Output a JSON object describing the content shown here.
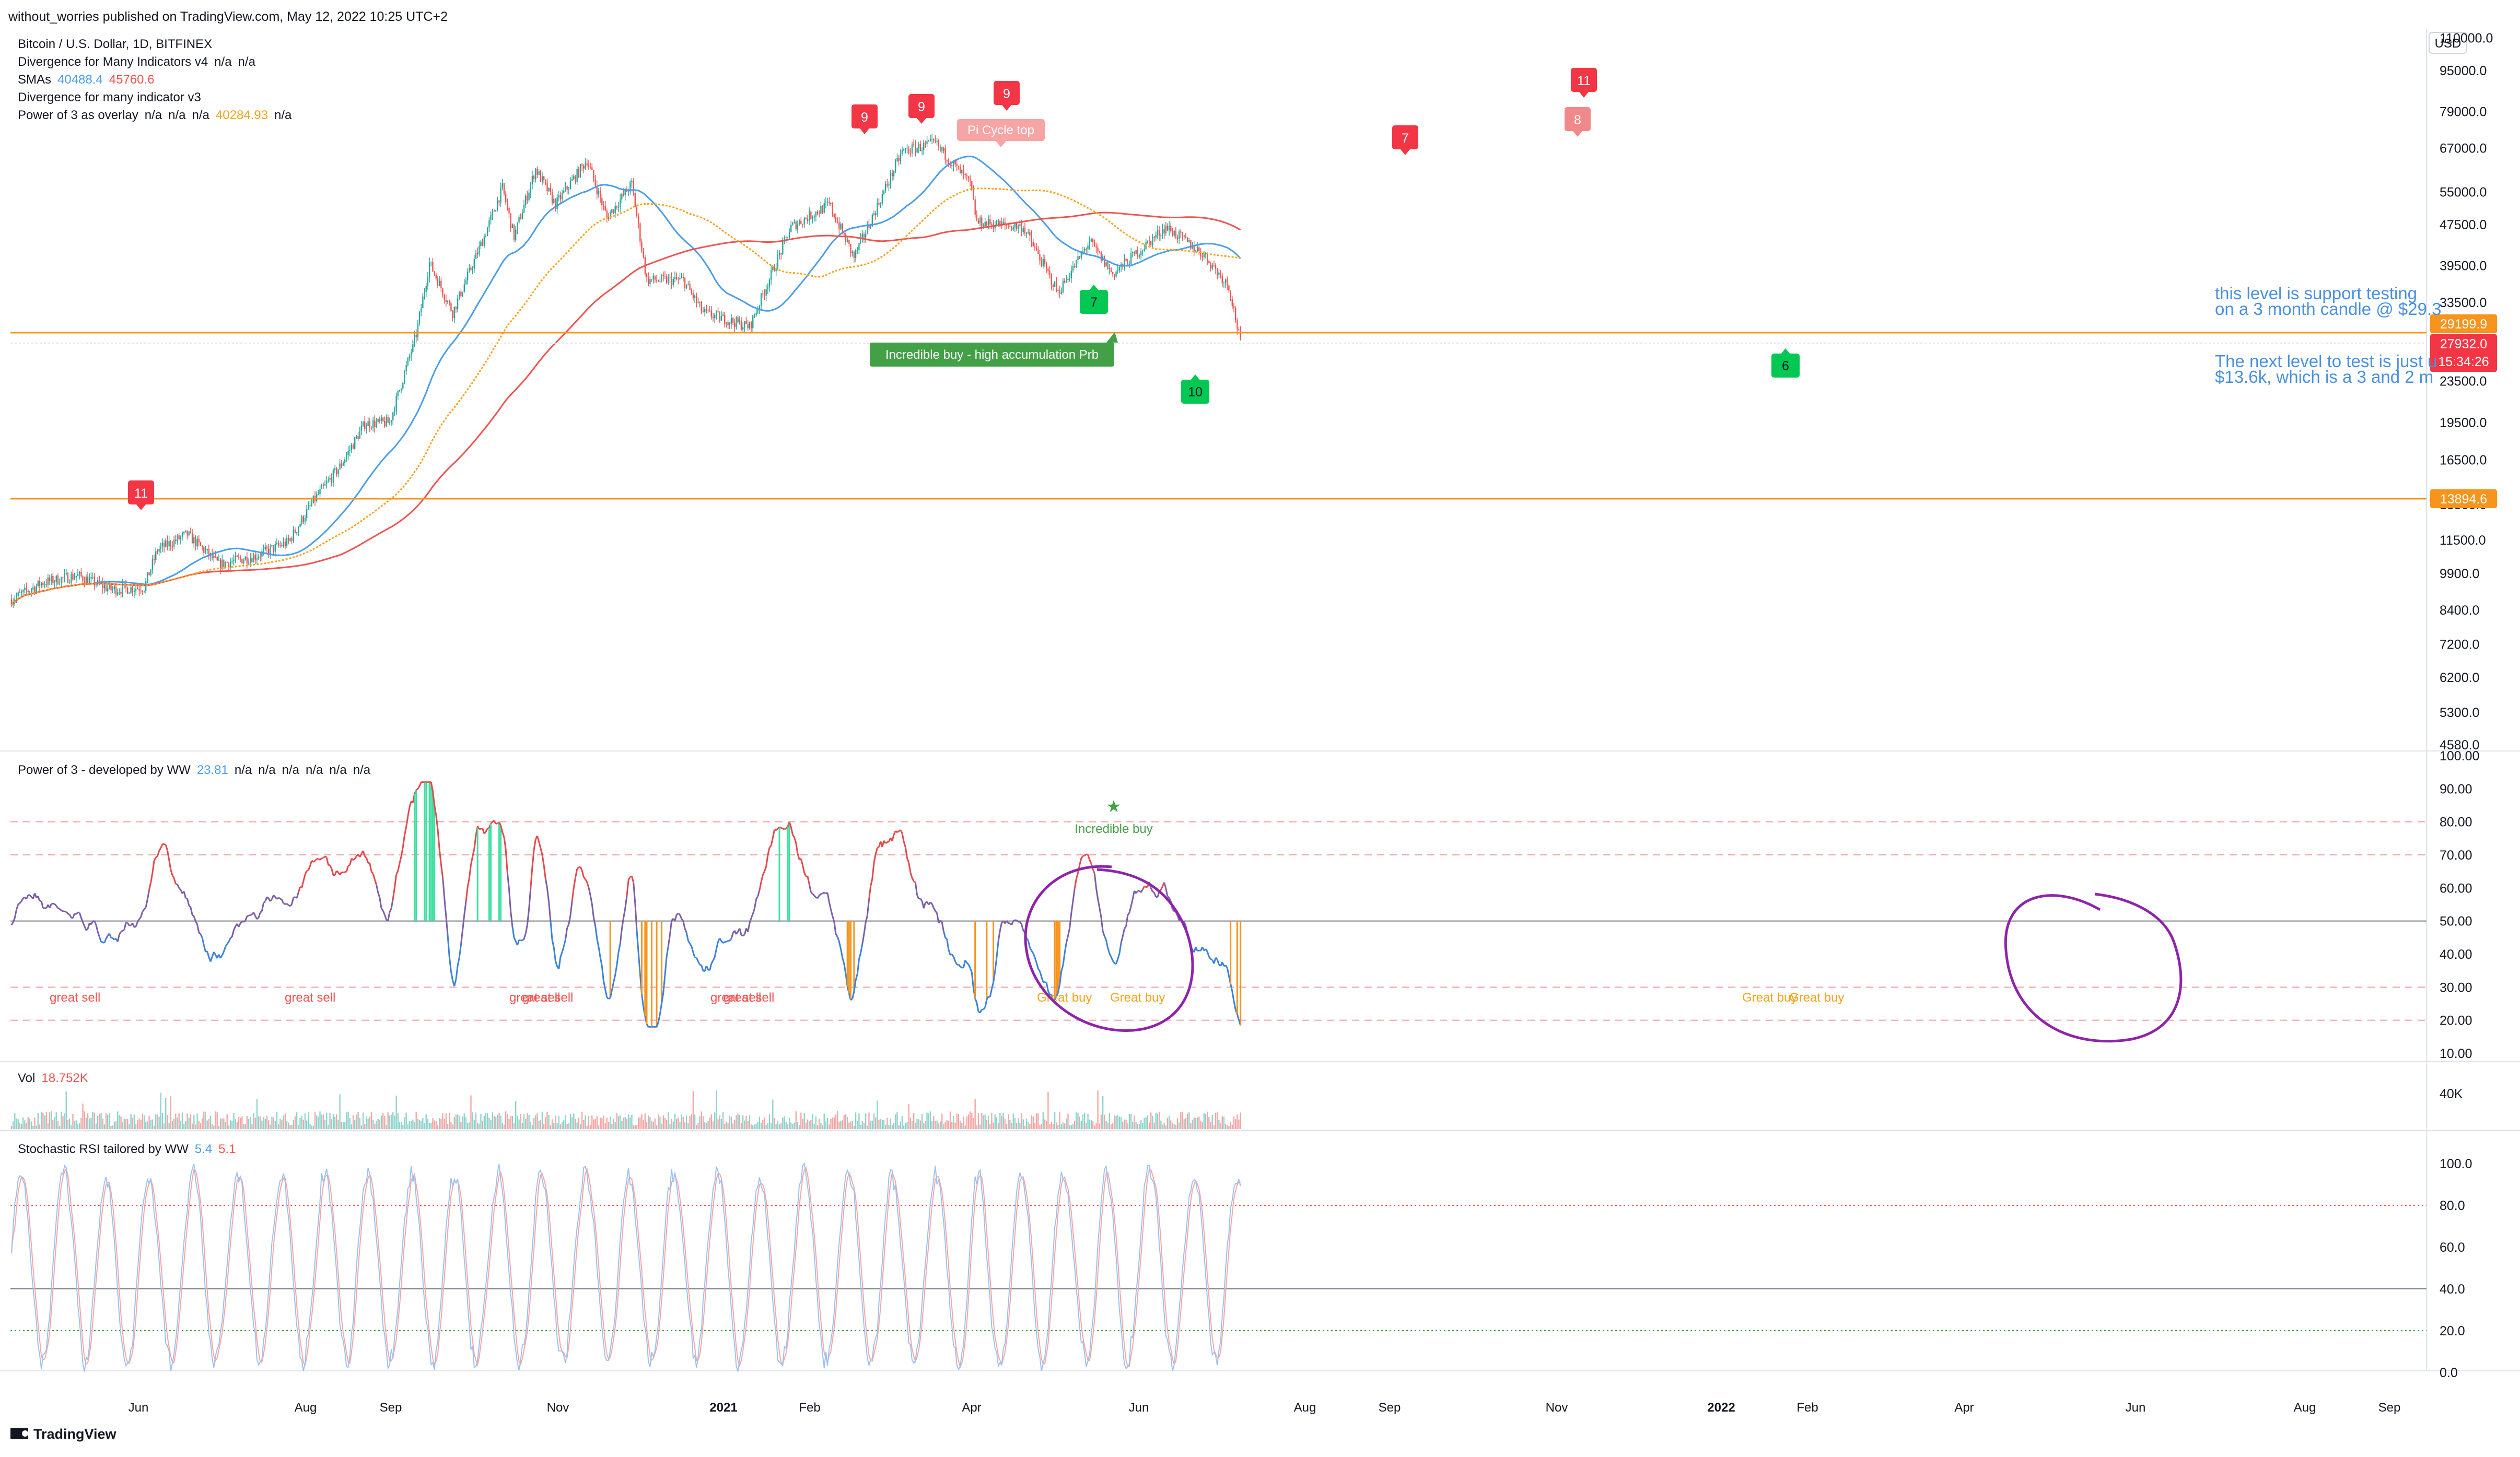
{
  "header": {
    "publisher": "without_worries published on TradingView.com, May 12, 2022 10:25 UTC+2"
  },
  "footer": {
    "brand": "TradingView"
  },
  "colors": {
    "up": "#26a69a",
    "down": "#ef5350",
    "sma_fast": "#4a9ee8",
    "sma_slow": "#ef5350",
    "power3_overlay": "#f7a21b",
    "support": "#f7941d",
    "annotation_blue": "#4a90e2",
    "circle": "#8e24aa",
    "buy_green": "#00c853",
    "sell_red": "#f23645"
  },
  "chart_data": [
    {
      "type": "candlestick",
      "title": "Bitcoin / U.S. Dollar, 1D, BITFINEX",
      "legend": [
        {
          "name": "Divergence for Many Indicators v4",
          "values": [
            "n/a",
            "n/a"
          ]
        },
        {
          "name": "SMAs",
          "values": [
            "40488.4",
            "45760.6"
          ]
        },
        {
          "name": "Divergence for many indicator v3",
          "values": []
        },
        {
          "name": "Power of 3 as overlay",
          "values": [
            "n/a",
            "n/a",
            "n/a",
            "40284.93",
            "n/a"
          ]
        }
      ],
      "currency": "USD",
      "y_scale": "log",
      "y_ticks": [
        "110000.0",
        "95000.0",
        "79000.0",
        "67000.0",
        "55000.0",
        "47500.0",
        "39500.0",
        "33500.0",
        "27500.0",
        "23500.0",
        "19500.0",
        "16500.0",
        "13500.0",
        "11500.0",
        "9900.0",
        "8400.0",
        "7200.0",
        "6200.0",
        "5300.0",
        "4580.0"
      ],
      "x_ticks": [
        "Jun",
        "Aug",
        "Sep",
        "Nov",
        "2021",
        "Feb",
        "Apr",
        "Jun",
        "Aug",
        "Sep",
        "Nov",
        "2022",
        "Feb",
        "Apr",
        "Jun",
        "Aug",
        "Sep"
      ],
      "price_badges": [
        {
          "label": "29199.9",
          "color": "#f7941d"
        },
        {
          "label": "27932.0",
          "color": "#f23645"
        },
        {
          "label": "15:34:26",
          "color": "#f23645"
        },
        {
          "label": "13894.6",
          "color": "#f7941d"
        }
      ],
      "support_levels": [
        29199.9,
        13894.6
      ],
      "annotations": [
        {
          "text": "this level is support testing"
        },
        {
          "text": "on a 3 month candle @ $29.3"
        },
        {
          "text": "The next level to test is just u"
        },
        {
          "text": "$13.6k, which is a 3 and 2 m"
        }
      ],
      "labels": [
        {
          "text": "Pi Cycle top"
        },
        {
          "text": "Incredible buy - high accumulation Prb"
        }
      ],
      "sell_markers": [
        "11",
        "9",
        "9",
        "9",
        "7",
        "8",
        "11"
      ],
      "buy_markers": [
        "7",
        "10",
        "6"
      ],
      "close_series": [
        {
          "d": "2020-05-01",
          "c": 8800
        },
        {
          "d": "2020-05-20",
          "c": 9500
        },
        {
          "d": "2020-06-10",
          "c": 9800
        },
        {
          "d": "2020-06-30",
          "c": 9200
        },
        {
          "d": "2020-07-20",
          "c": 9300
        },
        {
          "d": "2020-07-28",
          "c": 11000
        },
        {
          "d": "2020-08-15",
          "c": 11800
        },
        {
          "d": "2020-09-03",
          "c": 10300
        },
        {
          "d": "2020-09-25",
          "c": 10700
        },
        {
          "d": "2020-10-15",
          "c": 11400
        },
        {
          "d": "2020-10-30",
          "c": 13700
        },
        {
          "d": "2020-11-15",
          "c": 16000
        },
        {
          "d": "2020-11-30",
          "c": 19400
        },
        {
          "d": "2020-12-15",
          "c": 19500
        },
        {
          "d": "2020-12-31",
          "c": 29000
        },
        {
          "d": "2021-01-08",
          "c": 40000
        },
        {
          "d": "2021-01-22",
          "c": 32000
        },
        {
          "d": "2021-02-10",
          "c": 45000
        },
        {
          "d": "2021-02-21",
          "c": 56000
        },
        {
          "d": "2021-02-28",
          "c": 45000
        },
        {
          "d": "2021-03-13",
          "c": 61000
        },
        {
          "d": "2021-03-25",
          "c": 52000
        },
        {
          "d": "2021-04-13",
          "c": 63500
        },
        {
          "d": "2021-04-25",
          "c": 49000
        },
        {
          "d": "2021-05-10",
          "c": 57000
        },
        {
          "d": "2021-05-19",
          "c": 37000
        },
        {
          "d": "2021-06-10",
          "c": 37000
        },
        {
          "d": "2021-06-22",
          "c": 32000
        },
        {
          "d": "2021-07-20",
          "c": 30000
        },
        {
          "d": "2021-08-14",
          "c": 47000
        },
        {
          "d": "2021-09-06",
          "c": 52000
        },
        {
          "d": "2021-09-21",
          "c": 41000
        },
        {
          "d": "2021-10-20",
          "c": 66000
        },
        {
          "d": "2021-11-09",
          "c": 68500
        },
        {
          "d": "2021-11-30",
          "c": 57000
        },
        {
          "d": "2021-12-04",
          "c": 48000
        },
        {
          "d": "2022-01-01",
          "c": 47000
        },
        {
          "d": "2022-01-22",
          "c": 35000
        },
        {
          "d": "2022-02-10",
          "c": 44000
        },
        {
          "d": "2022-02-24",
          "c": 38000
        },
        {
          "d": "2022-03-28",
          "c": 47000
        },
        {
          "d": "2022-04-20",
          "c": 41500
        },
        {
          "d": "2022-05-05",
          "c": 36000
        },
        {
          "d": "2022-05-12",
          "c": 27932
        }
      ]
    },
    {
      "type": "line",
      "title": "Power of 3 - developed by WW",
      "value": "23.81",
      "extra_values": [
        "n/a",
        "n/a",
        "n/a",
        "n/a",
        "n/a",
        "n/a"
      ],
      "y_ticks": [
        "100.00",
        "90.00",
        "80.00",
        "70.00",
        "60.00",
        "50.00",
        "40.00",
        "30.00",
        "20.00",
        "10.00"
      ],
      "ylim": [
        10,
        100
      ],
      "reference_lines": [
        80,
        70,
        50,
        30,
        20
      ],
      "labels": [
        {
          "text": "great sell"
        },
        {
          "text": "great sell"
        },
        {
          "text": "great sell"
        },
        {
          "text": "great sell"
        },
        {
          "text": "great sell"
        },
        {
          "text": "great sell"
        },
        {
          "text": "Great buy"
        },
        {
          "text": "Great buy"
        },
        {
          "text": "Great buy"
        },
        {
          "text": "Great buy"
        },
        {
          "text": "Incredible buy"
        }
      ]
    },
    {
      "type": "bar",
      "title": "Vol",
      "value": "18.752K",
      "y_ticks": [
        "40K"
      ]
    },
    {
      "type": "line",
      "title": "Stochastic RSI tailored by WW",
      "values": [
        "5.4",
        "5.1"
      ],
      "y_ticks": [
        "100.0",
        "80.0",
        "60.0",
        "40.0",
        "20.0",
        "0.0"
      ],
      "ylim": [
        0,
        100
      ],
      "reference_lines": [
        80,
        40,
        20
      ]
    }
  ]
}
